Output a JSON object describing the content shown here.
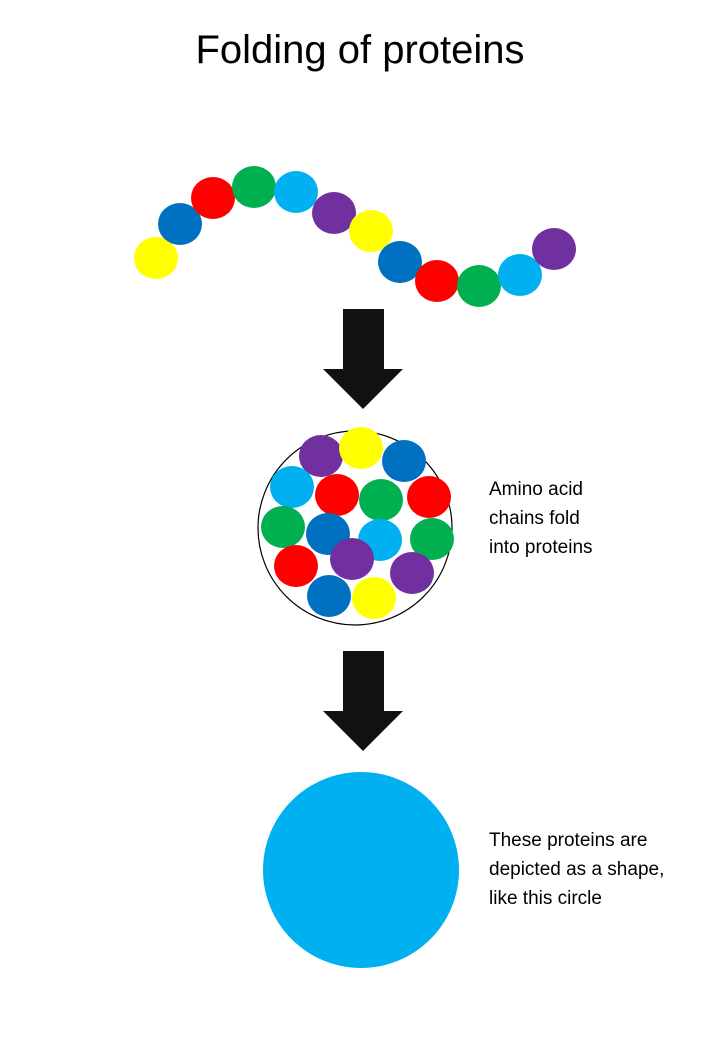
{
  "title": "Folding of proteins",
  "colors": {
    "yellow": "#ffff00",
    "blue": "#0070c0",
    "red": "#ff0000",
    "green": "#00b050",
    "cyan": "#00b0f0",
    "purple": "#7030a0",
    "arrow": "#111111",
    "outline": "#000000",
    "protein_shape": "#00b0f0"
  },
  "chain": {
    "description_icon": "amino-acid-chain",
    "sequence": [
      "yellow",
      "blue",
      "red",
      "green",
      "cyan",
      "purple",
      "yellow",
      "blue",
      "red",
      "green",
      "cyan",
      "purple"
    ]
  },
  "folded": {
    "icon": "folded-protein-cluster",
    "beads": [
      "purple",
      "yellow",
      "blue",
      "cyan",
      "red",
      "green",
      "red",
      "green",
      "blue",
      "cyan",
      "green",
      "red",
      "purple",
      "purple",
      "blue",
      "yellow"
    ]
  },
  "captions": {
    "fold": {
      "line1": "Amino acid",
      "line2": "chains fold",
      "line3": "into proteins"
    },
    "shape": {
      "line1": "These proteins are",
      "line2": "depicted as a shape,",
      "line3": "like this circle"
    }
  }
}
